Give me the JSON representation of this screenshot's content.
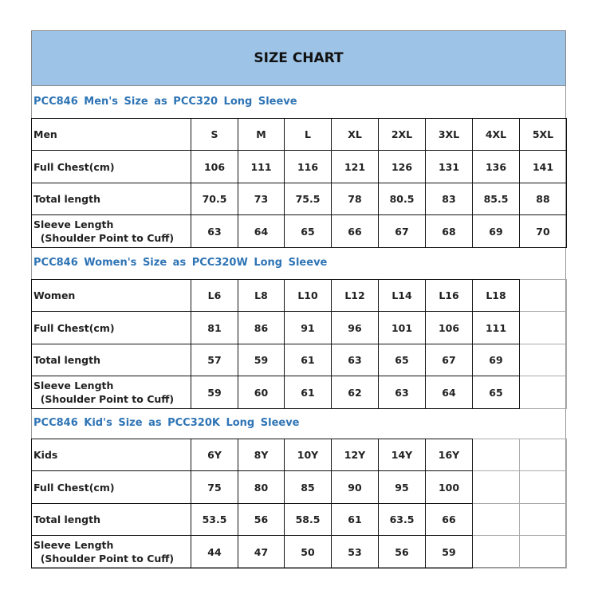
{
  "title": "SIZE CHART",
  "sections": [
    {
      "title": "PCC846  Men's  Size  as  PCC320 Long Sleeve",
      "rows": [
        [
          "Men",
          "S",
          "M",
          "L",
          "XL",
          "2XL",
          "3XL",
          "4XL",
          "5XL"
        ],
        [
          "Full Chest(cm)",
          "106",
          "111",
          "116",
          "121",
          "126",
          "131",
          "136",
          "141"
        ],
        [
          "Total length",
          "70.5",
          "73",
          "75.5",
          "78",
          "80.5",
          "83",
          "85.5",
          "88"
        ],
        [
          "Sleeve Length\n  (Shoulder Point to Cuff)",
          "63",
          "64",
          "65",
          "66",
          "67",
          "68",
          "69",
          "70"
        ]
      ]
    },
    {
      "title": "PCC846  Women's  Size  as  PCC320W Long Sleeve",
      "rows": [
        [
          "Women",
          "L6",
          "L8",
          "L10",
          "L12",
          "L14",
          "L16",
          "L18",
          ""
        ],
        [
          "Full Chest(cm)",
          "81",
          "86",
          "91",
          "96",
          "101",
          "106",
          "111",
          ""
        ],
        [
          "Total length",
          "57",
          "59",
          "61",
          "63",
          "65",
          "67",
          "69",
          ""
        ],
        [
          "Sleeve Length\n  (Shoulder Point to Cuff)",
          "59",
          "60",
          "61",
          "62",
          "63",
          "64",
          "65",
          ""
        ]
      ]
    },
    {
      "title": "PCC846  Kid's  Size  as  PCC320K Long Sleeve",
      "rows": [
        [
          "Kids",
          "6Y",
          "8Y",
          "10Y",
          "12Y",
          "14Y",
          "16Y",
          "",
          ""
        ],
        [
          "Full Chest(cm)",
          "75",
          "80",
          "85",
          "90",
          "95",
          "100",
          "",
          ""
        ],
        [
          "Total length",
          "53.5",
          "56",
          "58.5",
          "61",
          "63.5",
          "66",
          "",
          ""
        ],
        [
          "Sleeve Length\n  (Shoulder Point to Cuff)",
          "44",
          "47",
          "50",
          "53",
          "56",
          "59",
          "",
          ""
        ]
      ]
    }
  ]
}
